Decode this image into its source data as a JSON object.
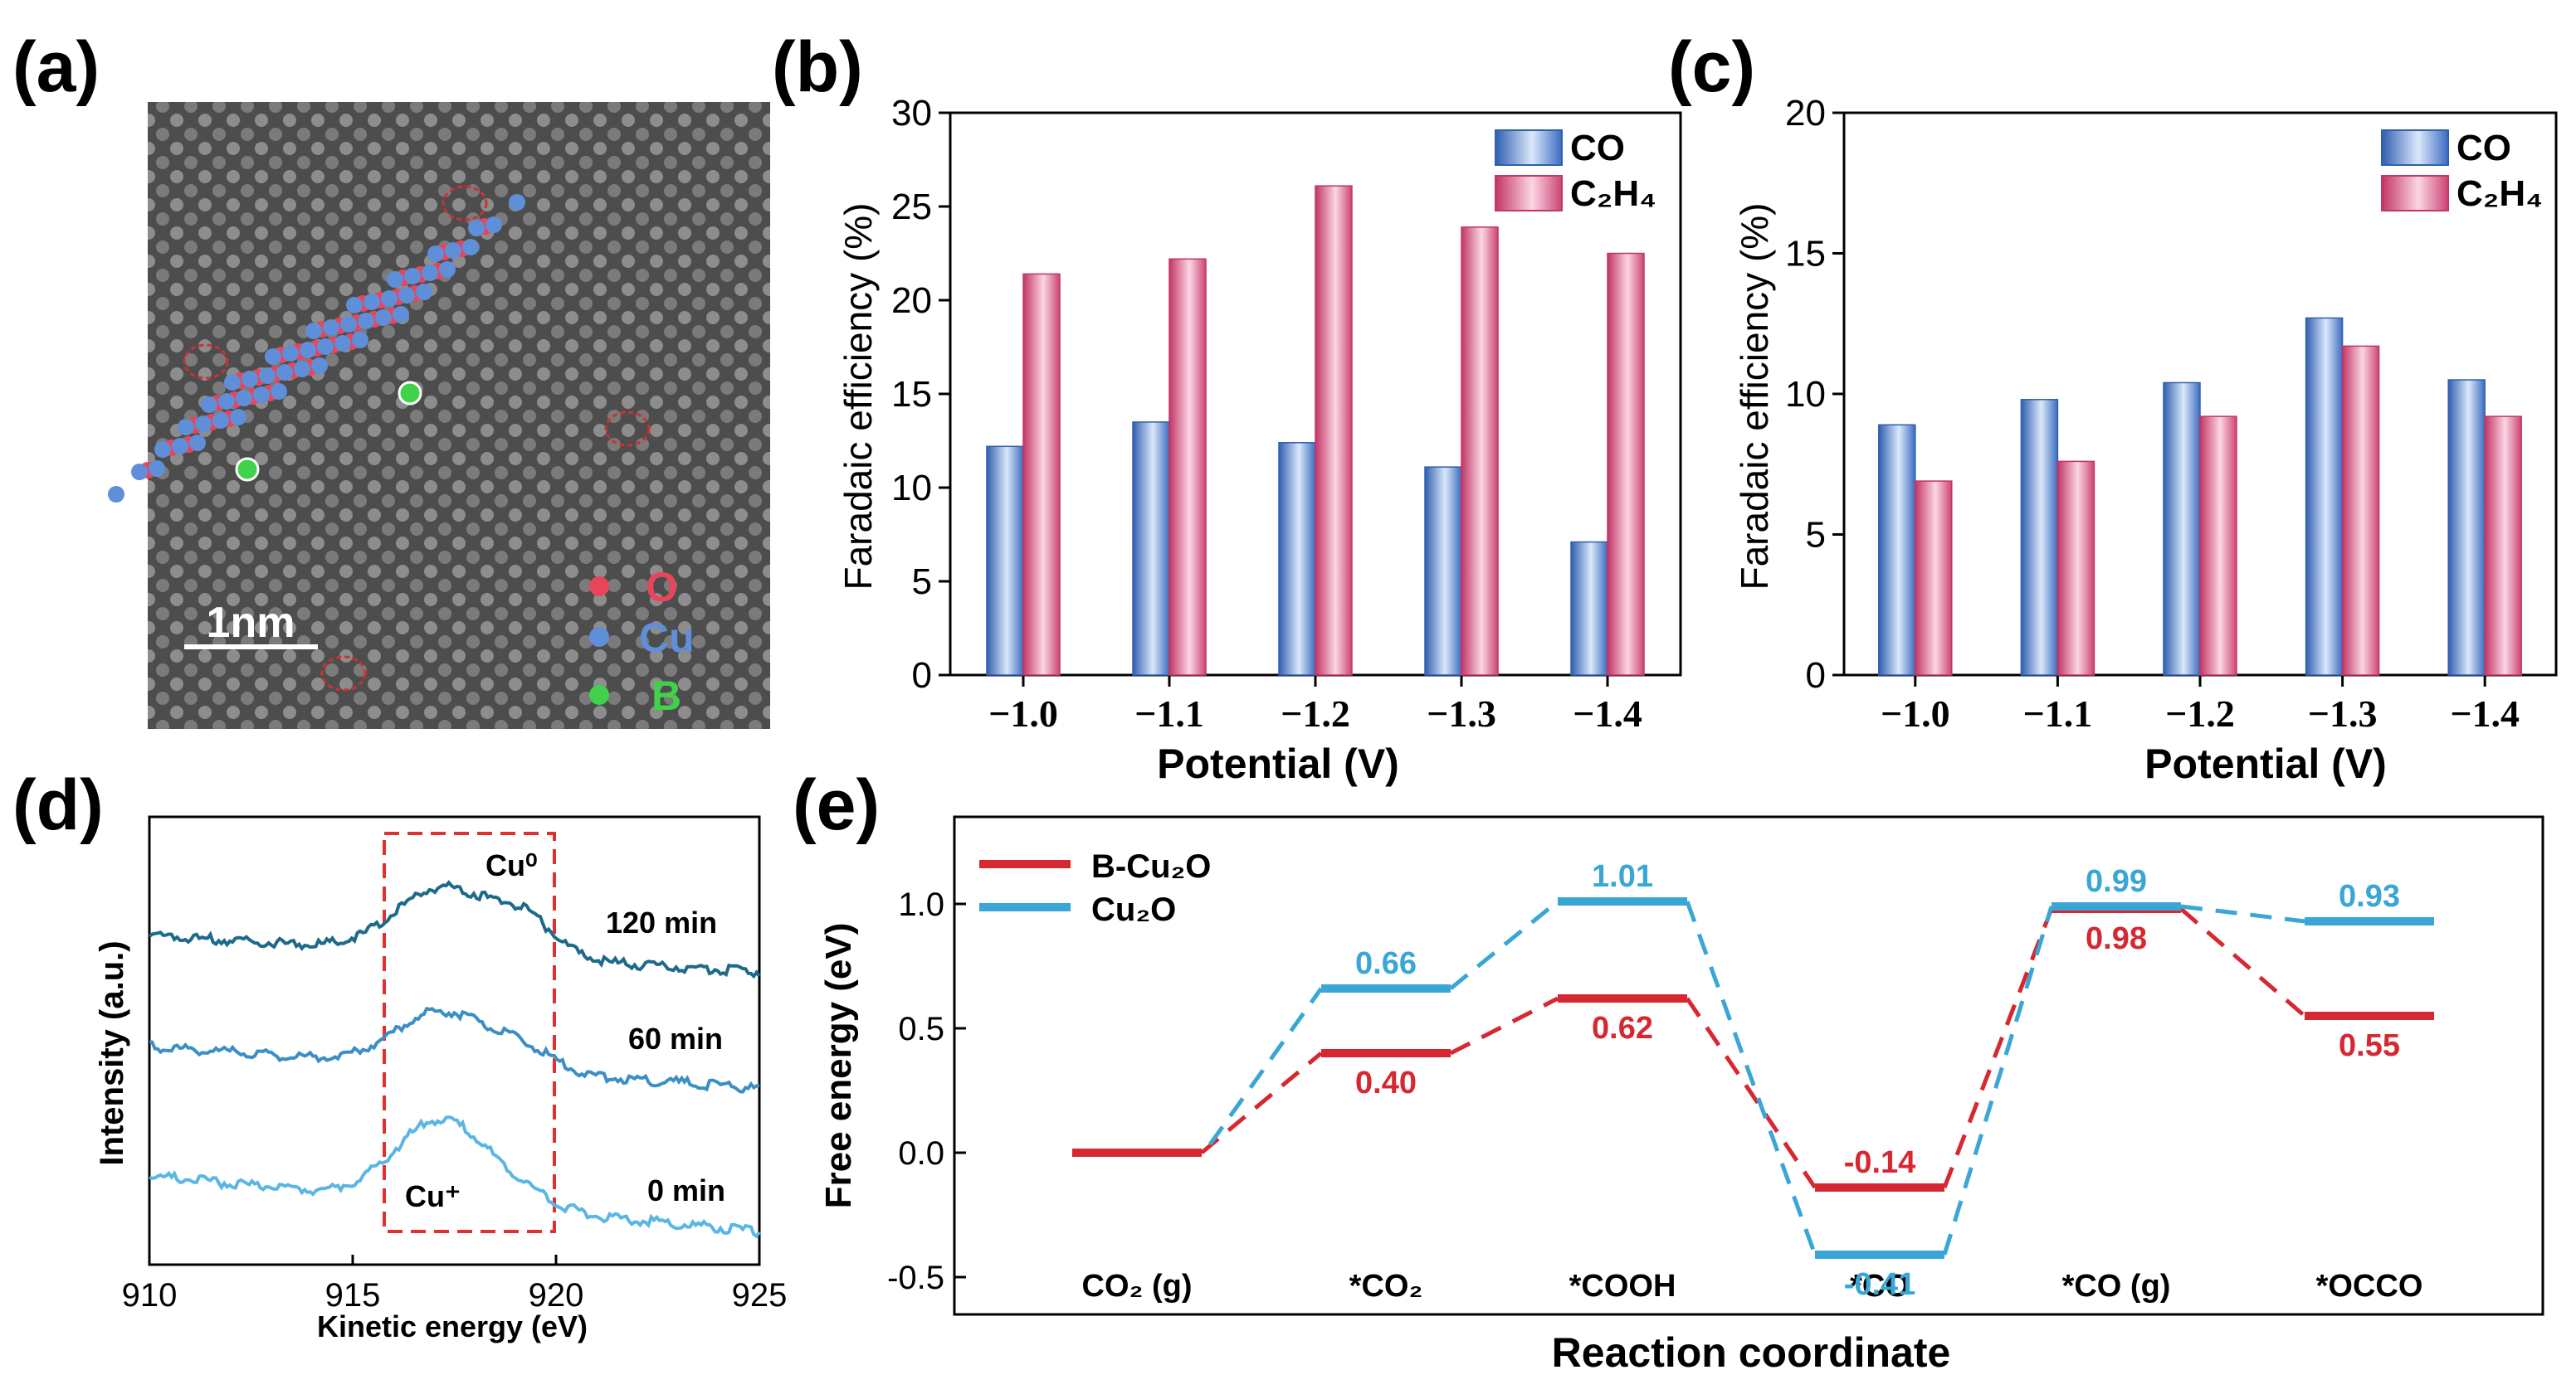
{
  "colors": {
    "co_bar": "#4a78c4",
    "c2h4_bar": "#d44e7c",
    "b_cu2o_line": "#d62830",
    "cu2o_line": "#3aa6d6",
    "o_atom": "#e8455a",
    "cu_atom": "#5f8fd8",
    "b_atom": "#3fd24a",
    "xps_120": "#1e6a8a",
    "xps_60": "#3b8fc4",
    "xps_0": "#5bb6e4",
    "box": "#e03030"
  },
  "panel_labels": {
    "a": "(a)",
    "b": "(b)",
    "c": "(c)",
    "d": "(d)",
    "e": "(e)"
  },
  "image_a": {
    "scale_label": "1nm",
    "legend": [
      {
        "symbol": "O",
        "icon": "o-atom-icon"
      },
      {
        "symbol": "Cu",
        "icon": "cu-atom-icon"
      },
      {
        "symbol": "B",
        "icon": "b-atom-icon"
      }
    ]
  },
  "chart_data": [
    {
      "id": "b",
      "type": "bar",
      "categories": [
        "−1.0",
        "−1.1",
        "−1.2",
        "−1.3",
        "−1.4"
      ],
      "series": [
        {
          "name": "CO",
          "values": [
            12.2,
            13.5,
            12.4,
            11.1,
            7.1
          ]
        },
        {
          "name": "C₂H₄",
          "values": [
            21.4,
            22.2,
            26.1,
            23.9,
            22.5
          ]
        }
      ],
      "xlabel": "Potential (V)",
      "ylabel": "Faradaic efficiency (%)",
      "ylim": [
        0,
        30
      ],
      "yticks": [
        0,
        5,
        10,
        15,
        20,
        25,
        30
      ],
      "legend": "top-right",
      "grid": false
    },
    {
      "id": "c",
      "type": "bar",
      "categories": [
        "−1.0",
        "−1.1",
        "−1.2",
        "−1.3",
        "−1.4"
      ],
      "series": [
        {
          "name": "CO",
          "values": [
            8.9,
            9.8,
            10.4,
            12.7,
            10.5
          ]
        },
        {
          "name": "C₂H₄",
          "values": [
            6.9,
            7.6,
            9.2,
            11.7,
            9.2
          ]
        }
      ],
      "xlabel": "Potential (V)",
      "ylabel": "Faradaic efficiency (%)",
      "ylim": [
        0,
        20
      ],
      "yticks": [
        0,
        5,
        10,
        15,
        20
      ],
      "legend": "top-right",
      "grid": false
    },
    {
      "id": "d",
      "type": "line",
      "xlabel": "Kinetic energy (eV)",
      "ylabel": "Intensity (a.u.)",
      "xlim": [
        910,
        925
      ],
      "xticks": [
        910,
        915,
        920,
        925
      ],
      "series_labels": [
        "120 min",
        "60 min",
        "0 min"
      ],
      "annotations": [
        "Cu⁰",
        "Cu⁺"
      ],
      "highlight_range": [
        915.8,
        920
      ]
    },
    {
      "id": "e",
      "type": "line",
      "xlabel": "Reaction coordinate",
      "ylabel": "Free energy (eV)",
      "ylim": [
        -0.65,
        1.35
      ],
      "yticks": [
        "-0.5",
        "0.0",
        "0.5",
        "1.0"
      ],
      "ytick_values": [
        -0.5,
        0,
        0.5,
        1.0
      ],
      "categories": [
        "CO₂ (g)",
        "*CO₂",
        "*COOH",
        "*CO",
        "*CO (g)",
        "*OCCO"
      ],
      "legend": "top-left",
      "series": [
        {
          "name": "B-Cu₂O",
          "values": [
            0.0,
            0.4,
            0.62,
            -0.14,
            0.98,
            0.55
          ],
          "labels": [
            "",
            "0.40",
            "0.62",
            "-0.14",
            "0.98",
            "0.55"
          ]
        },
        {
          "name": "Cu₂O",
          "values": [
            null,
            0.66,
            1.01,
            -0.41,
            0.99,
            0.93
          ],
          "labels": [
            "",
            "0.66",
            "1.01",
            "-0.41",
            "0.99",
            "0.93"
          ]
        }
      ]
    }
  ]
}
